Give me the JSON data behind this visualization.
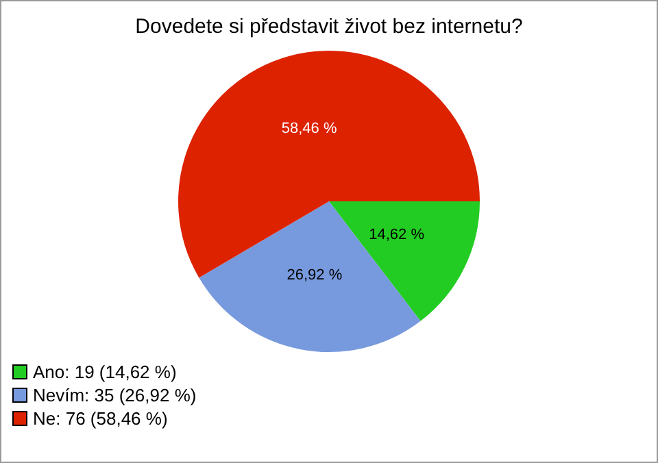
{
  "chart_data": {
    "type": "pie",
    "title": "Dovedete si představit život bez internetu?",
    "categories": [
      "Ano: 19 (14,62 %)",
      "Nevím: 35 (26,92 %)",
      "Ne: 76 (58,46 %)"
    ],
    "values": [
      14.62,
      26.92,
      58.46
    ],
    "colors": [
      "#22cc22",
      "#7799dd",
      "#dd2200"
    ],
    "value_labels": [
      "14,62 %",
      "26,92 %",
      "58,46 %"
    ],
    "legend": "bottom left"
  }
}
